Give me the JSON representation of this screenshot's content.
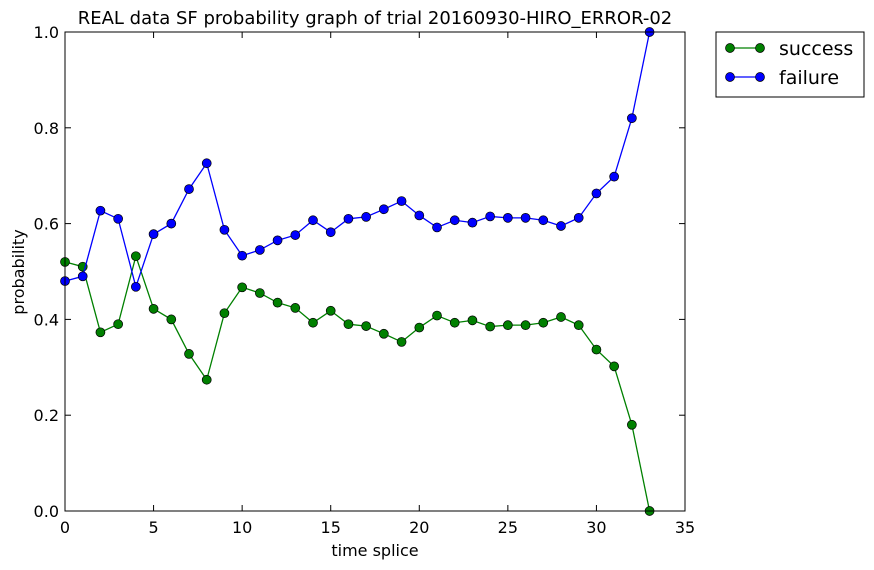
{
  "chart_data": {
    "type": "line",
    "title": "REAL data SF probability graph of trial 20160930-HIRO_ERROR-02",
    "xlabel": "time splice",
    "ylabel": "probability",
    "xlim": [
      0,
      35
    ],
    "ylim": [
      0.0,
      1.0
    ],
    "xticks": [
      0,
      5,
      10,
      15,
      20,
      25,
      30,
      35
    ],
    "xtick_labels": [
      "0",
      "5",
      "10",
      "15",
      "20",
      "25",
      "30",
      "35"
    ],
    "yticks": [
      0.0,
      0.2,
      0.4,
      0.6,
      0.8,
      1.0
    ],
    "ytick_labels": [
      "0.0",
      "0.2",
      "0.4",
      "0.6",
      "0.8",
      "1.0"
    ],
    "grid": false,
    "legend_position": "outside-top-right",
    "x": [
      0,
      1,
      2,
      3,
      4,
      5,
      6,
      7,
      8,
      9,
      10,
      11,
      12,
      13,
      14,
      15,
      16,
      17,
      18,
      19,
      20,
      21,
      22,
      23,
      24,
      25,
      26,
      27,
      28,
      29,
      30,
      31,
      32,
      33
    ],
    "series": [
      {
        "name": "success",
        "color": "#008000",
        "marker": "circle",
        "values": [
          0.52,
          0.51,
          0.373,
          0.39,
          0.532,
          0.422,
          0.4,
          0.328,
          0.274,
          0.413,
          0.467,
          0.455,
          0.435,
          0.424,
          0.393,
          0.418,
          0.39,
          0.386,
          0.37,
          0.353,
          0.383,
          0.408,
          0.393,
          0.398,
          0.385,
          0.388,
          0.388,
          0.393,
          0.405,
          0.388,
          0.337,
          0.302,
          0.18,
          0.0
        ]
      },
      {
        "name": "failure",
        "color": "#0000ff",
        "marker": "circle",
        "values": [
          0.48,
          0.49,
          0.627,
          0.61,
          0.468,
          0.578,
          0.6,
          0.672,
          0.726,
          0.587,
          0.533,
          0.545,
          0.565,
          0.576,
          0.607,
          0.582,
          0.61,
          0.614,
          0.63,
          0.647,
          0.617,
          0.592,
          0.607,
          0.602,
          0.615,
          0.612,
          0.612,
          0.607,
          0.595,
          0.612,
          0.663,
          0.698,
          0.82,
          1.0
        ]
      }
    ]
  }
}
